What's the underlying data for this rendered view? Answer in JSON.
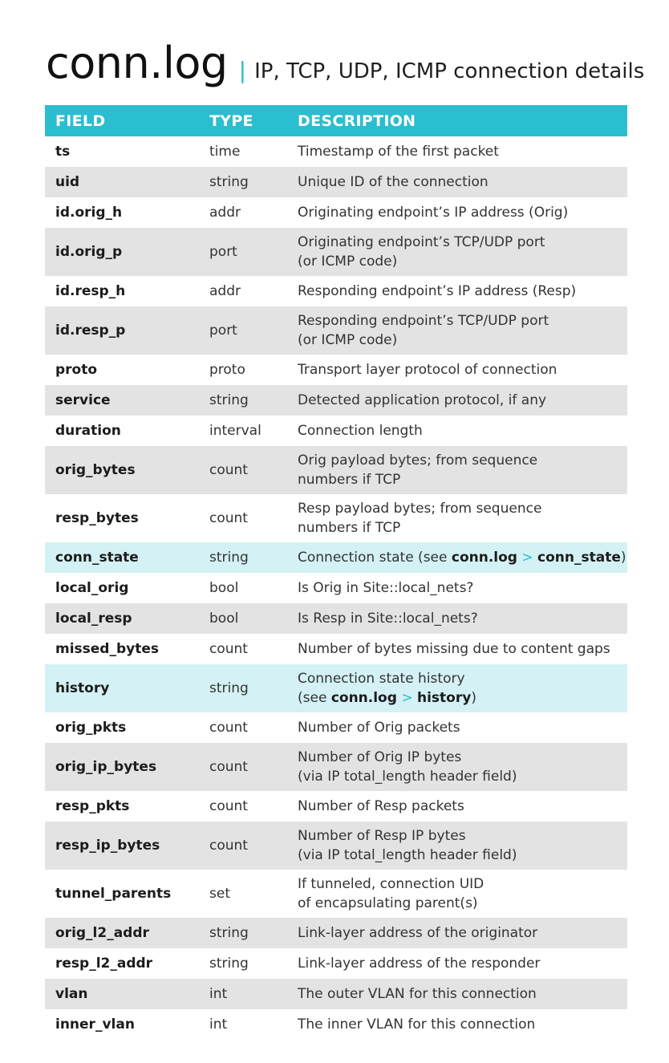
{
  "header": {
    "title": "conn.log",
    "divider": "|",
    "subtitle": "IP, TCP, UDP, ICMP connection details"
  },
  "table": {
    "columns": [
      "FIELD",
      "TYPE",
      "DESCRIPTION"
    ],
    "rows": [
      {
        "field": "ts",
        "type": "time",
        "desc": [
          "Timestamp of the first packet"
        ]
      },
      {
        "field": "uid",
        "type": "string",
        "desc": [
          "Unique ID of the connection"
        ]
      },
      {
        "field": "id.orig_h",
        "type": "addr",
        "desc": [
          "Originating endpoint’s IP address (Orig)"
        ]
      },
      {
        "field": "id.orig_p",
        "type": "port",
        "desc": [
          "Originating endpoint’s TCP/UDP port",
          "(or ICMP code)"
        ]
      },
      {
        "field": "id.resp_h",
        "type": "addr",
        "desc": [
          "Responding endpoint’s IP address (Resp)"
        ]
      },
      {
        "field": "id.resp_p",
        "type": "port",
        "desc": [
          "Responding endpoint’s TCP/UDP port",
          "(or ICMP code)"
        ]
      },
      {
        "field": "proto",
        "type": "proto",
        "desc": [
          "Transport layer protocol of connection"
        ]
      },
      {
        "field": "service",
        "type": "string",
        "desc": [
          "Detected application protocol, if any"
        ]
      },
      {
        "field": "duration",
        "type": "interval",
        "desc": [
          "Connection length"
        ]
      },
      {
        "field": "orig_bytes",
        "type": "count",
        "desc": [
          "Orig payload bytes; from sequence",
          "numbers if TCP"
        ]
      },
      {
        "field": "resp_bytes",
        "type": "count",
        "desc": [
          "Resp payload bytes; from sequence",
          "numbers if TCP"
        ]
      },
      {
        "field": "conn_state",
        "type": "string",
        "highlight": true,
        "desc": [
          "Connection state (see |conn.log| > |conn_state|)"
        ]
      },
      {
        "field": "local_orig",
        "type": "bool",
        "desc": [
          "Is Orig in Site::local_nets?"
        ]
      },
      {
        "field": "local_resp",
        "type": "bool",
        "desc": [
          "Is Resp in Site::local_nets?"
        ]
      },
      {
        "field": "missed_bytes",
        "type": "count",
        "desc": [
          "Number of bytes missing due to content gaps"
        ]
      },
      {
        "field": "history",
        "type": "string",
        "highlight": true,
        "desc": [
          "Connection state history",
          "(see |conn.log| > |history|)"
        ]
      },
      {
        "field": "orig_pkts",
        "type": "count",
        "desc": [
          "Number of Orig packets"
        ]
      },
      {
        "field": "orig_ip_bytes",
        "type": "count",
        "desc": [
          "Number of Orig IP bytes",
          "(via IP total_length header field)"
        ]
      },
      {
        "field": "resp_pkts",
        "type": "count",
        "desc": [
          "Number of Resp packets"
        ]
      },
      {
        "field": "resp_ip_bytes",
        "type": "count",
        "desc": [
          "Number of Resp IP bytes",
          "(via IP total_length header field)"
        ]
      },
      {
        "field": "tunnel_parents",
        "type": "set",
        "desc": [
          "If tunneled, connection UID",
          "of encapsulating parent(s)"
        ]
      },
      {
        "field": "orig_l2_addr",
        "type": "string",
        "desc": [
          "Link-layer address of the originator"
        ]
      },
      {
        "field": "resp_l2_addr",
        "type": "string",
        "desc": [
          "Link-layer address of the responder"
        ]
      },
      {
        "field": "vlan",
        "type": "int",
        "desc": [
          "The outer VLAN for this connection"
        ]
      },
      {
        "field": "inner_vlan",
        "type": "int",
        "desc": [
          "The inner VLAN for this connection"
        ]
      }
    ]
  },
  "colors": {
    "accent": "#2bbdd0",
    "row_alt": "#e3e3e3",
    "row_highlight": "#d4f1f5"
  }
}
